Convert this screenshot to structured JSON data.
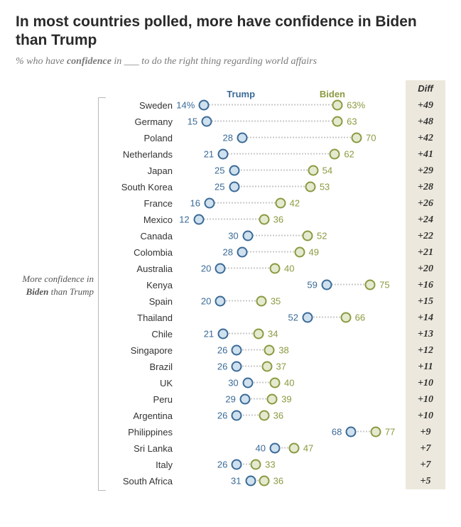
{
  "title": "In most countries polled, more have confidence in Biden than Trump",
  "subtitle_pre": "% who have ",
  "subtitle_bold": "confidence",
  "subtitle_post": " in ___ to do the right thing regarding world affairs",
  "header": {
    "trump": "Trump",
    "biden": "Biden",
    "diff": "Diff"
  },
  "side_label_pre": "More confidence in ",
  "side_label_bold": "Biden",
  "side_label_post": " than Trump",
  "colors": {
    "trump_border": "#3a6a96",
    "trump_fill": "#cfe0ee",
    "biden_border": "#8a9a3f",
    "biden_fill": "#e4ead0",
    "dotted": "#c9c9c9",
    "diff_bg": "#ece8dd"
  },
  "scale": {
    "min": 4,
    "max": 88
  },
  "rows": [
    {
      "country": "Sweden",
      "trump": 14,
      "biden": 63,
      "trump_label": "14%",
      "biden_label": "63%",
      "diff": "+49"
    },
    {
      "country": "Germany",
      "trump": 15,
      "biden": 63,
      "trump_label": "15",
      "biden_label": "63",
      "diff": "+48"
    },
    {
      "country": "Poland",
      "trump": 28,
      "biden": 70,
      "trump_label": "28",
      "biden_label": "70",
      "diff": "+42"
    },
    {
      "country": "Netherlands",
      "trump": 21,
      "biden": 62,
      "trump_label": "21",
      "biden_label": "62",
      "diff": "+41"
    },
    {
      "country": "Japan",
      "trump": 25,
      "biden": 54,
      "trump_label": "25",
      "biden_label": "54",
      "diff": "+29"
    },
    {
      "country": "South Korea",
      "trump": 25,
      "biden": 53,
      "trump_label": "25",
      "biden_label": "53",
      "diff": "+28"
    },
    {
      "country": "France",
      "trump": 16,
      "biden": 42,
      "trump_label": "16",
      "biden_label": "42",
      "diff": "+26"
    },
    {
      "country": "Mexico",
      "trump": 12,
      "biden": 36,
      "trump_label": "12",
      "biden_label": "36",
      "diff": "+24"
    },
    {
      "country": "Canada",
      "trump": 30,
      "biden": 52,
      "trump_label": "30",
      "biden_label": "52",
      "diff": "+22"
    },
    {
      "country": "Colombia",
      "trump": 28,
      "biden": 49,
      "trump_label": "28",
      "biden_label": "49",
      "diff": "+21"
    },
    {
      "country": "Australia",
      "trump": 20,
      "biden": 40,
      "trump_label": "20",
      "biden_label": "40",
      "diff": "+20"
    },
    {
      "country": "Kenya",
      "trump": 59,
      "biden": 75,
      "trump_label": "59",
      "biden_label": "75",
      "diff": "+16"
    },
    {
      "country": "Spain",
      "trump": 20,
      "biden": 35,
      "trump_label": "20",
      "biden_label": "35",
      "diff": "+15"
    },
    {
      "country": "Thailand",
      "trump": 52,
      "biden": 66,
      "trump_label": "52",
      "biden_label": "66",
      "diff": "+14"
    },
    {
      "country": "Chile",
      "trump": 21,
      "biden": 34,
      "trump_label": "21",
      "biden_label": "34",
      "diff": "+13"
    },
    {
      "country": "Singapore",
      "trump": 26,
      "biden": 38,
      "trump_label": "26",
      "biden_label": "38",
      "diff": "+12"
    },
    {
      "country": "Brazil",
      "trump": 26,
      "biden": 37,
      "trump_label": "26",
      "biden_label": "37",
      "diff": "+11"
    },
    {
      "country": "UK",
      "trump": 30,
      "biden": 40,
      "trump_label": "30",
      "biden_label": "40",
      "diff": "+10"
    },
    {
      "country": "Peru",
      "trump": 29,
      "biden": 39,
      "trump_label": "29",
      "biden_label": "39",
      "diff": "+10"
    },
    {
      "country": "Argentina",
      "trump": 26,
      "biden": 36,
      "trump_label": "26",
      "biden_label": "36",
      "diff": "+10"
    },
    {
      "country": "Philippines",
      "trump": 68,
      "biden": 77,
      "trump_label": "68",
      "biden_label": "77",
      "diff": "+9"
    },
    {
      "country": "Sri Lanka",
      "trump": 40,
      "biden": 47,
      "trump_label": "40",
      "biden_label": "47",
      "diff": "+7"
    },
    {
      "country": "Italy",
      "trump": 26,
      "biden": 33,
      "trump_label": "26",
      "biden_label": "33",
      "diff": "+7"
    },
    {
      "country": "South Africa",
      "trump": 31,
      "biden": 36,
      "trump_label": "31",
      "biden_label": "36",
      "diff": "+5"
    }
  ]
}
